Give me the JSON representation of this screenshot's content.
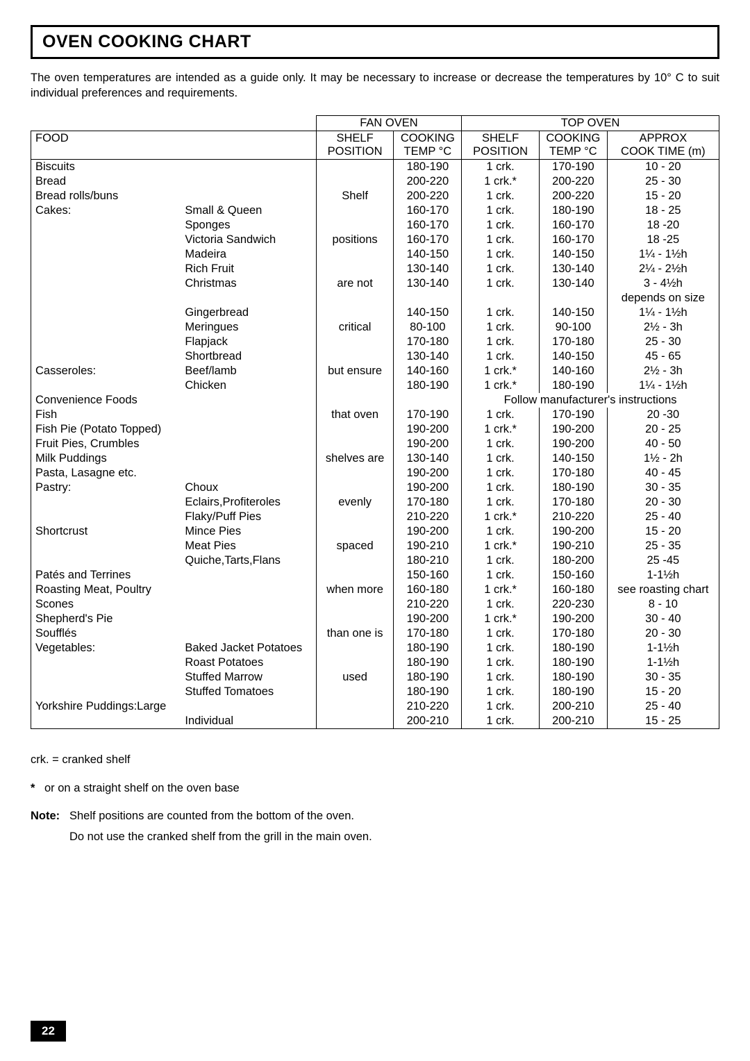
{
  "title": "OVEN COOKING CHART",
  "intro": "The oven temperatures are intended as a guide only. It may be necessary to increase or decrease the temperatures by 10° C to suit individual preferences and requirements.",
  "headers": {
    "fan_oven": "FAN  OVEN",
    "top_oven": "TOP OVEN",
    "food": "FOOD",
    "shelf_pos1": "SHELF",
    "shelf_pos2": "POSITION",
    "cook1": "COOKING",
    "cook_temp": "TEMP °C",
    "approx": "APPROX",
    "cook_time": "COOK TIME (m)"
  },
  "shelf_note_lines": [
    "Shelf",
    "positions",
    "are not",
    "critical",
    "but ensure",
    "that oven",
    "shelves  are",
    "evenly",
    "spaced",
    "when more",
    "than one is",
    "used"
  ],
  "rows": [
    {
      "food": "Biscuits",
      "sub": "",
      "fan_temp": "180-190",
      "top_pos": "1 crk.",
      "top_temp": "170-190",
      "time": "10 - 20"
    },
    {
      "food": "Bread",
      "sub": "",
      "fan_temp": "200-220",
      "top_pos": "1 crk.*",
      "top_temp": "200-220",
      "time": "25 - 30"
    },
    {
      "food": "Bread rolls/buns",
      "sub": "",
      "fan_temp": "200-220",
      "top_pos": "1 crk.",
      "top_temp": "200-220",
      "time": "15 - 20"
    },
    {
      "food": "Cakes:",
      "sub": "Small & Queen",
      "fan_temp": "160-170",
      "top_pos": "1 crk.",
      "top_temp": "180-190",
      "time": "18 - 25"
    },
    {
      "food": "",
      "sub": "Sponges",
      "fan_temp": "160-170",
      "top_pos": "1 crk.",
      "top_temp": "160-170",
      "time": "18 -20"
    },
    {
      "food": "",
      "sub": "Victoria Sandwich",
      "fan_temp": "160-170",
      "top_pos": "1 crk.",
      "top_temp": "160-170",
      "time": "18 -25"
    },
    {
      "food": "",
      "sub": "Madeira",
      "fan_temp": "140-150",
      "top_pos": "1 crk.",
      "top_temp": "140-150",
      "time": "1¼ - 1½h"
    },
    {
      "food": "",
      "sub": "Rich Fruit",
      "fan_temp": "130-140",
      "top_pos": "1 crk.",
      "top_temp": "130-140",
      "time": "2¼ - 2½h"
    },
    {
      "food": "",
      "sub": "Christmas",
      "fan_temp": "130-140",
      "top_pos": "1 crk.",
      "top_temp": "130-140",
      "time": "3 - 4½h"
    },
    {
      "food": "",
      "sub": "",
      "fan_temp": "",
      "top_pos": "",
      "top_temp": "",
      "time": "depends on size"
    },
    {
      "food": "",
      "sub": "Gingerbread",
      "fan_temp": "140-150",
      "top_pos": "1 crk.",
      "top_temp": "140-150",
      "time": "1¼ - 1½h"
    },
    {
      "food": "",
      "sub": "Meringues",
      "fan_temp": "80-100",
      "top_pos": "1 crk.",
      "top_temp": "90-100",
      "time": "2½ - 3h"
    },
    {
      "food": "",
      "sub": "Flapjack",
      "fan_temp": "170-180",
      "top_pos": "1 crk.",
      "top_temp": "170-180",
      "time": "25 - 30"
    },
    {
      "food": "",
      "sub": "Shortbread",
      "fan_temp": "130-140",
      "top_pos": "1 crk.",
      "top_temp": "140-150",
      "time": "45 - 65"
    },
    {
      "food": "Casseroles:",
      "sub": "Beef/lamb",
      "fan_temp": "140-160",
      "top_pos": "1 crk.*",
      "top_temp": "140-160",
      "time": "2½ - 3h"
    },
    {
      "food": "",
      "sub": "Chicken",
      "fan_temp": "180-190",
      "top_pos": "1 crk.*",
      "top_temp": "180-190",
      "time": "1¼ - 1½h"
    },
    {
      "food": "Convenience Foods",
      "sub": "",
      "fan_temp": "",
      "top_pos": "Follow manufacturer's instructions",
      "top_temp": "",
      "time": "",
      "span_note": true
    },
    {
      "food": "Fish",
      "sub": "",
      "fan_temp": "170-190",
      "top_pos": "1 crk.",
      "top_temp": "170-190",
      "time": "20 -30"
    },
    {
      "food": "Fish Pie (Potato Topped)",
      "sub": "",
      "fan_temp": "190-200",
      "top_pos": "1 crk.*",
      "top_temp": "190-200",
      "time": "20 - 25"
    },
    {
      "food": "Fruit Pies, Crumbles",
      "sub": "",
      "fan_temp": "190-200",
      "top_pos": "1 crk.",
      "top_temp": "190-200",
      "time": "40 - 50"
    },
    {
      "food": "Milk Puddings",
      "sub": "",
      "fan_temp": "130-140",
      "top_pos": "1 crk.",
      "top_temp": "140-150",
      "time": "1½ - 2h"
    },
    {
      "food": "Pasta, Lasagne etc.",
      "sub": "",
      "fan_temp": "190-200",
      "top_pos": "1 crk.",
      "top_temp": "170-180",
      "time": "40 - 45"
    },
    {
      "food": "Pastry:",
      "sub": "Choux",
      "fan_temp": "190-200",
      "top_pos": "1 crk.",
      "top_temp": "180-190",
      "time": "30 - 35"
    },
    {
      "food": "",
      "sub": "Eclairs,Profiteroles",
      "fan_temp": "170-180",
      "top_pos": "1 crk.",
      "top_temp": "170-180",
      "time": "20 - 30"
    },
    {
      "food": "",
      "sub": "Flaky/Puff Pies",
      "fan_temp": "210-220",
      "top_pos": "1 crk.*",
      "top_temp": "210-220",
      "time": "25 - 40"
    },
    {
      "food": "Shortcrust",
      "sub": "Mince Pies",
      "fan_temp": "190-200",
      "top_pos": "1 crk.",
      "top_temp": "190-200",
      "time": "15 - 20"
    },
    {
      "food": "",
      "sub": "Meat Pies",
      "fan_temp": "190-210",
      "top_pos": "1 crk.*",
      "top_temp": "190-210",
      "time": "25 - 35"
    },
    {
      "food": "",
      "sub": "Quiche,Tarts,Flans",
      "fan_temp": "180-210",
      "top_pos": "1 crk.",
      "top_temp": "180-200",
      "time": "25 -45"
    },
    {
      "food": "Patés and Terrines",
      "sub": "",
      "fan_temp": "150-160",
      "top_pos": "1 crk.",
      "top_temp": "150-160",
      "time": "1-1½h"
    },
    {
      "food": "Roasting Meat, Poultry",
      "sub": "",
      "fan_temp": "160-180",
      "top_pos": "1 crk.*",
      "top_temp": "160-180",
      "time": "see roasting chart"
    },
    {
      "food": "Scones",
      "sub": "",
      "fan_temp": "210-220",
      "top_pos": "1 crk.",
      "top_temp": "220-230",
      "time": "8 - 10"
    },
    {
      "food": "Shepherd's Pie",
      "sub": "",
      "fan_temp": "190-200",
      "top_pos": "1 crk.*",
      "top_temp": "190-200",
      "time": "30 - 40"
    },
    {
      "food": "Soufflés",
      "sub": "",
      "fan_temp": "170-180",
      "top_pos": "1 crk.",
      "top_temp": "170-180",
      "time": "20 - 30"
    },
    {
      "food": "Vegetables:",
      "sub": "Baked Jacket Potatoes",
      "fan_temp": "180-190",
      "top_pos": "1 crk.",
      "top_temp": "180-190",
      "time": "1-1½h"
    },
    {
      "food": "",
      "sub": "Roast Potatoes",
      "fan_temp": "180-190",
      "top_pos": "1 crk.",
      "top_temp": "180-190",
      "time": "1-1½h"
    },
    {
      "food": "",
      "sub": "Stuffed Marrow",
      "fan_temp": "180-190",
      "top_pos": "1 crk.",
      "top_temp": "180-190",
      "time": "30 - 35"
    },
    {
      "food": "",
      "sub": "Stuffed Tomatoes",
      "fan_temp": "180-190",
      "top_pos": "1 crk.",
      "top_temp": "180-190",
      "time": "15 - 20"
    },
    {
      "food": "Yorkshire Puddings:Large",
      "sub": "",
      "fan_temp": "210-220",
      "top_pos": "1 crk.",
      "top_temp": "200-210",
      "time": "25 - 40"
    },
    {
      "food": "",
      "sub": "Individual",
      "fan_temp": "200-210",
      "top_pos": "1 crk.",
      "top_temp": "200-210",
      "time": "15 - 25"
    }
  ],
  "legend": {
    "crk": "crk.   =   cranked shelf",
    "star_label": "*",
    "star_text": "or on a straight shelf on the oven base",
    "note_label": "Note:",
    "note_line1": "Shelf positions are counted from the bottom of the oven.",
    "note_line2": "Do not use the cranked shelf from the grill in the main oven."
  },
  "page_number": "22",
  "shelf_note_row_map": [
    2,
    5,
    8,
    11,
    14,
    17,
    20,
    23,
    26,
    29,
    32,
    35
  ]
}
